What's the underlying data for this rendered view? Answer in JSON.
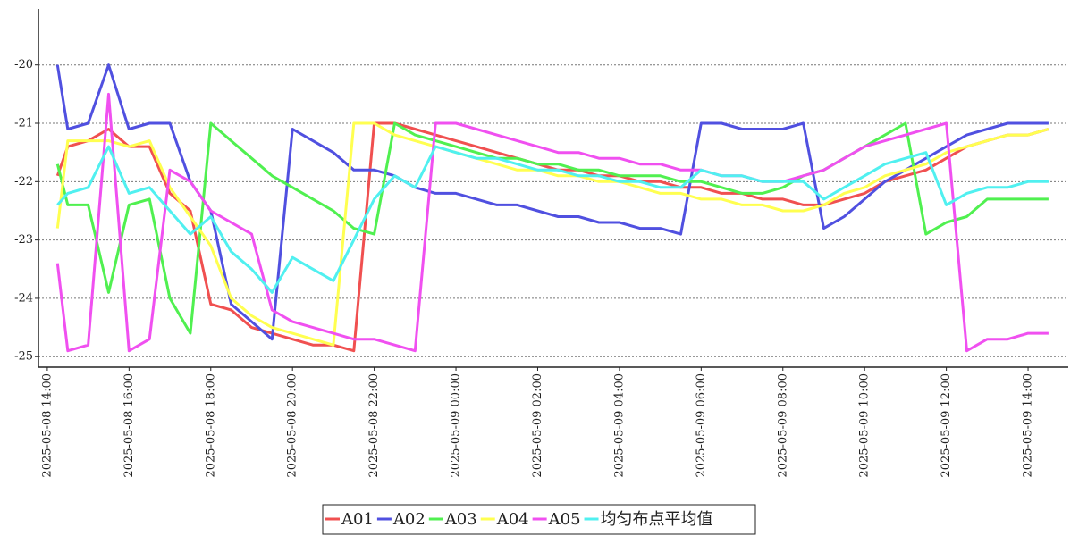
{
  "chart_data": {
    "type": "line",
    "x": [
      "2025-05-08 14:15",
      "2025-05-08 14:30",
      "2025-05-08 15:00",
      "2025-05-08 15:30",
      "2025-05-08 16:00",
      "2025-05-08 16:30",
      "2025-05-08 17:00",
      "2025-05-08 17:30",
      "2025-05-08 18:00",
      "2025-05-08 18:30",
      "2025-05-08 19:00",
      "2025-05-08 19:30",
      "2025-05-08 20:00",
      "2025-05-08 20:30",
      "2025-05-08 21:00",
      "2025-05-08 21:30",
      "2025-05-08 22:00",
      "2025-05-08 22:30",
      "2025-05-08 23:00",
      "2025-05-08 23:30",
      "2025-05-09 00:00",
      "2025-05-09 00:30",
      "2025-05-09 01:00",
      "2025-05-09 01:30",
      "2025-05-09 02:00",
      "2025-05-09 02:30",
      "2025-05-09 03:00",
      "2025-05-09 03:30",
      "2025-05-09 04:00",
      "2025-05-09 04:30",
      "2025-05-09 05:00",
      "2025-05-09 05:30",
      "2025-05-09 06:00",
      "2025-05-09 06:30",
      "2025-05-09 07:00",
      "2025-05-09 07:30",
      "2025-05-09 08:00",
      "2025-05-09 08:30",
      "2025-05-09 09:00",
      "2025-05-09 09:30",
      "2025-05-09 10:00",
      "2025-05-09 10:30",
      "2025-05-09 11:00",
      "2025-05-09 11:30",
      "2025-05-09 12:00",
      "2025-05-09 12:30",
      "2025-05-09 13:00",
      "2025-05-09 13:30",
      "2025-05-09 14:00",
      "2025-05-09 14:30"
    ],
    "series": [
      {
        "name": "A01",
        "color": "#f05050",
        "values": [
          -21.9,
          -21.4,
          -21.3,
          -21.1,
          -21.4,
          -21.4,
          -22.2,
          -22.5,
          -24.1,
          -24.2,
          -24.5,
          -24.6,
          -24.7,
          -24.8,
          -24.8,
          -24.9,
          -21.0,
          -21.0,
          -21.1,
          -21.2,
          -21.3,
          -21.4,
          -21.5,
          -21.6,
          -21.7,
          -21.8,
          -21.8,
          -21.9,
          -21.9,
          -22.0,
          -22.0,
          -22.1,
          -22.1,
          -22.2,
          -22.2,
          -22.3,
          -22.3,
          -22.4,
          -22.4,
          -22.3,
          -22.2,
          -22.0,
          -21.9,
          -21.8,
          -21.6,
          -21.4,
          -21.3,
          -21.2,
          -21.2,
          -21.1
        ]
      },
      {
        "name": "A02",
        "color": "#5050e0",
        "values": [
          -20.0,
          -21.1,
          -21.0,
          -20.0,
          -21.1,
          -21.0,
          -21.0,
          -22.0,
          -22.5,
          -24.1,
          -24.4,
          -24.7,
          -21.1,
          -21.3,
          -21.5,
          -21.8,
          -21.8,
          -21.9,
          -22.1,
          -22.2,
          -22.2,
          -22.3,
          -22.4,
          -22.4,
          -22.5,
          -22.6,
          -22.6,
          -22.7,
          -22.7,
          -22.8,
          -22.8,
          -22.9,
          -21.0,
          -21.0,
          -21.1,
          -21.1,
          -21.1,
          -21.0,
          -22.8,
          -22.6,
          -22.3,
          -22.0,
          -21.8,
          -21.6,
          -21.4,
          -21.2,
          -21.1,
          -21.0,
          -21.0,
          -21.0
        ]
      },
      {
        "name": "A03",
        "color": "#50f050",
        "values": [
          -21.7,
          -22.4,
          -22.4,
          -23.9,
          -22.4,
          -22.3,
          -24.0,
          -24.6,
          -21.0,
          -21.3,
          -21.6,
          -21.9,
          -22.1,
          -22.3,
          -22.5,
          -22.8,
          -22.9,
          -21.0,
          -21.2,
          -21.3,
          -21.4,
          -21.5,
          -21.6,
          -21.6,
          -21.7,
          -21.7,
          -21.8,
          -21.8,
          -21.9,
          -21.9,
          -21.9,
          -22.0,
          -22.0,
          -22.1,
          -22.2,
          -22.2,
          -22.1,
          -21.9,
          -21.8,
          -21.6,
          -21.4,
          -21.2,
          -21.0,
          -22.9,
          -22.7,
          -22.6,
          -22.3,
          -22.3,
          -22.3,
          -22.3
        ]
      },
      {
        "name": "A04",
        "color": "#ffff50",
        "values": [
          -22.8,
          -21.3,
          -21.3,
          -21.3,
          -21.4,
          -21.3,
          -22.1,
          -22.6,
          -23.1,
          -24.0,
          -24.3,
          -24.5,
          -24.6,
          -24.7,
          -24.8,
          -21.0,
          -21.0,
          -21.2,
          -21.3,
          -21.4,
          -21.5,
          -21.6,
          -21.7,
          -21.8,
          -21.8,
          -21.9,
          -21.9,
          -22.0,
          -22.0,
          -22.1,
          -22.2,
          -22.2,
          -22.3,
          -22.3,
          -22.4,
          -22.4,
          -22.5,
          -22.5,
          -22.4,
          -22.2,
          -22.1,
          -21.9,
          -21.8,
          -21.7,
          -21.5,
          -21.4,
          -21.3,
          -21.2,
          -21.2,
          -21.1
        ]
      },
      {
        "name": "A05",
        "color": "#f050f0",
        "values": [
          -23.4,
          -24.9,
          -24.8,
          -20.5,
          -24.9,
          -24.7,
          -21.8,
          -22.0,
          -22.5,
          -22.7,
          -22.9,
          -24.2,
          -24.4,
          -24.5,
          -24.6,
          -24.7,
          -24.7,
          -24.8,
          -24.9,
          -21.0,
          -21.0,
          -21.1,
          -21.2,
          -21.3,
          -21.4,
          -21.5,
          -21.5,
          -21.6,
          -21.6,
          -21.7,
          -21.7,
          -21.8,
          -21.8,
          -21.9,
          -21.9,
          -22.0,
          -22.0,
          -21.9,
          -21.8,
          -21.6,
          -21.4,
          -21.3,
          -21.2,
          -21.1,
          -21.0,
          -24.9,
          -24.7,
          -24.7,
          -24.6,
          -24.6
        ]
      },
      {
        "name": "均匀布点平均值",
        "color": "#50f0f0",
        "values": [
          -22.4,
          -22.2,
          -22.1,
          -21.4,
          -22.2,
          -22.1,
          -22.5,
          -22.9,
          -22.6,
          -23.2,
          -23.5,
          -23.9,
          -23.3,
          -23.5,
          -23.7,
          -23.0,
          -22.3,
          -21.9,
          -22.1,
          -21.4,
          -21.5,
          -21.6,
          -21.6,
          -21.7,
          -21.8,
          -21.8,
          -21.9,
          -21.9,
          -22.0,
          -22.0,
          -22.1,
          -22.1,
          -21.8,
          -21.9,
          -21.9,
          -22.0,
          -22.0,
          -22.0,
          -22.3,
          -22.1,
          -21.9,
          -21.7,
          -21.6,
          -21.5,
          -22.4,
          -22.2,
          -22.1,
          -22.1,
          -22.0,
          -22.0
        ]
      }
    ],
    "xlim": [
      "2025-05-08 13:47",
      "2025-05-09 14:59"
    ],
    "xticks": [
      "2025-05-08 14:00",
      "2025-05-08 16:00",
      "2025-05-08 18:00",
      "2025-05-08 20:00",
      "2025-05-08 22:00",
      "2025-05-09 00:00",
      "2025-05-09 02:00",
      "2025-05-09 04:00",
      "2025-05-09 06:00",
      "2025-05-09 08:00",
      "2025-05-09 10:00",
      "2025-05-09 12:00",
      "2025-05-09 14:00"
    ],
    "ylim": [
      -25.18,
      -19.04
    ],
    "yticks": [
      -25,
      -24,
      -23,
      -22,
      -21,
      -20
    ],
    "grid": true,
    "legend": "bottom"
  }
}
